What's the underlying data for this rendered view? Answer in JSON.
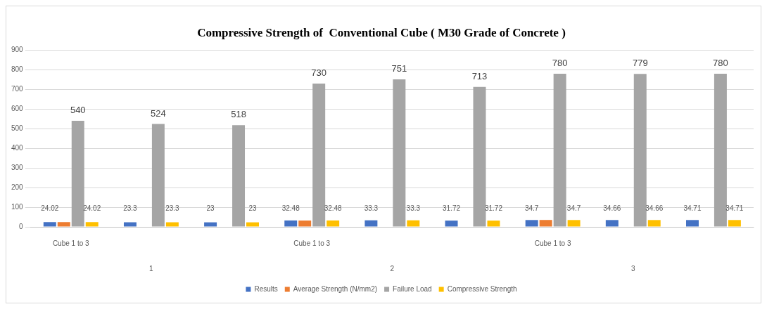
{
  "chart_data": {
    "type": "bar",
    "title": "Compressive Strength of  Conventional Cube ( M30 Grade of Concrete )",
    "categories": [
      "Cube 1 to 3",
      null,
      null,
      "Cube 1 to 3",
      null,
      null,
      "Cube 1 to 3",
      null,
      null
    ],
    "series": [
      {
        "name": "Results",
        "color": "#4472c4",
        "values": [
          24.02,
          23.3,
          23,
          32.48,
          33.3,
          31.72,
          34.7,
          34.66,
          34.71
        ],
        "value_labels": [
          "24.02",
          "23.3",
          "23",
          "32.48",
          "33.3",
          "31.72",
          "34.7",
          "34.66",
          "34.71"
        ]
      },
      {
        "name": "Average Strength (N/mm2)",
        "color": "#ed7d31",
        "values": [
          24,
          null,
          null,
          32,
          null,
          null,
          35,
          null,
          null
        ]
      },
      {
        "name": "Failure Load",
        "color": "#a5a5a5",
        "values": [
          540,
          524,
          518,
          730,
          751,
          713,
          780,
          779,
          780
        ],
        "value_labels": [
          "540",
          "524",
          "518",
          "730",
          "751",
          "713",
          "780",
          "779",
          "780"
        ]
      },
      {
        "name": "Compressive Strength",
        "color": "#ffc000",
        "values": [
          24.02,
          23.3,
          23,
          32.48,
          33.3,
          31.72,
          34.7,
          34.66,
          34.71
        ],
        "value_labels": [
          "24.02",
          "23.3",
          "23",
          "32.48",
          "33.3",
          "31.72",
          "34.7",
          "34.66",
          "34.71"
        ]
      }
    ],
    "annotations": [
      "1",
      "2",
      "3"
    ],
    "ylim": [
      0,
      900
    ],
    "yticks": [
      0,
      100,
      200,
      300,
      400,
      500,
      600,
      700,
      800,
      900
    ],
    "grid": "y",
    "legend": "bottom"
  }
}
